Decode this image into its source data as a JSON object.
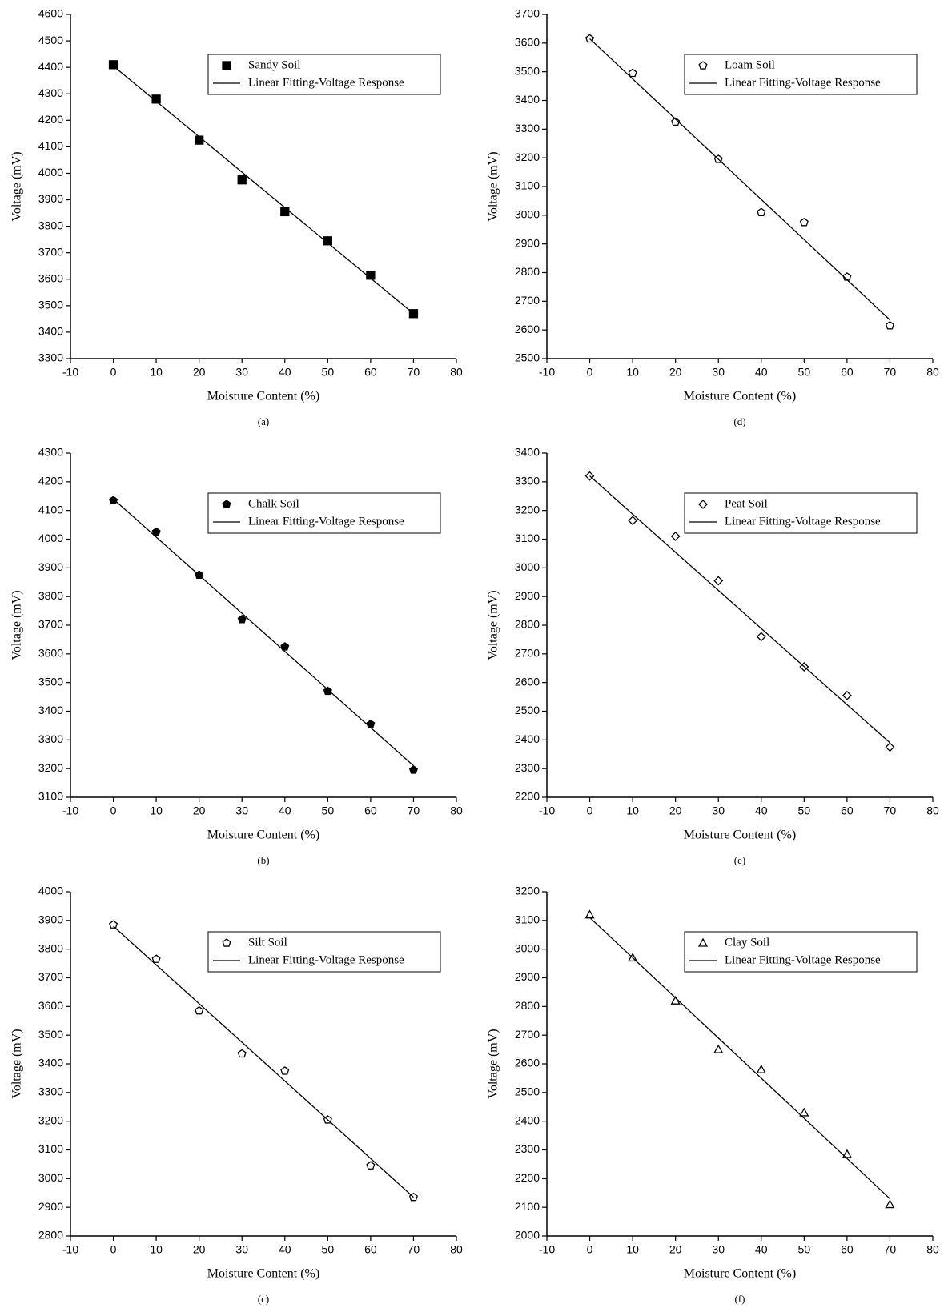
{
  "chart_data": [
    {
      "type": "scatter",
      "caption": "(a)",
      "xlabel": "Moisture Content (%)",
      "ylabel": "Voltage (mV)",
      "xlim": [
        -10,
        80
      ],
      "xticks": [
        -10,
        0,
        10,
        20,
        30,
        40,
        50,
        60,
        70,
        80
      ],
      "ylim": [
        3300,
        4600
      ],
      "yticks": [
        3300,
        3400,
        3500,
        3600,
        3700,
        3800,
        3900,
        4000,
        4100,
        4200,
        4300,
        4400,
        4500,
        4600
      ],
      "legend": "upper right",
      "series": [
        {
          "name": "Sandy Soil",
          "color": "#000000",
          "marker": "square",
          "marker_fill": "#000000",
          "x": [
            0,
            10,
            20,
            30,
            40,
            50,
            60,
            70
          ],
          "values": [
            4410,
            4280,
            4125,
            3975,
            3855,
            3745,
            3615,
            3470
          ]
        },
        {
          "name": "Linear Fitting-Voltage Response",
          "color": "#000000",
          "marker": "line",
          "x": [
            0,
            70
          ],
          "values": [
            4405,
            3470
          ]
        }
      ]
    },
    {
      "type": "scatter",
      "caption": "(b)",
      "xlabel": "Moisture Content (%)",
      "ylabel": "Voltage (mV)",
      "xlim": [
        -10,
        80
      ],
      "xticks": [
        -10,
        0,
        10,
        20,
        30,
        40,
        50,
        60,
        70,
        80
      ],
      "ylim": [
        3100,
        4300
      ],
      "yticks": [
        3100,
        3200,
        3300,
        3400,
        3500,
        3600,
        3700,
        3800,
        3900,
        4000,
        4100,
        4200,
        4300
      ],
      "legend": "upper right",
      "series": [
        {
          "name": "Chalk Soil",
          "color": "#000000",
          "marker": "pentagon",
          "marker_fill": "#000000",
          "x": [
            0,
            10,
            20,
            30,
            40,
            50,
            60,
            70
          ],
          "values": [
            4135,
            4025,
            3875,
            3720,
            3625,
            3470,
            3355,
            3195
          ]
        },
        {
          "name": "Linear Fitting-Voltage Response",
          "color": "#000000",
          "marker": "line",
          "x": [
            0,
            70
          ],
          "values": [
            4140,
            3210
          ]
        }
      ]
    },
    {
      "type": "scatter",
      "caption": "(c)",
      "xlabel": "Moisture Content (%)",
      "ylabel": "Voltage (mV)",
      "xlim": [
        -10,
        80
      ],
      "xticks": [
        -10,
        0,
        10,
        20,
        30,
        40,
        50,
        60,
        70,
        80
      ],
      "ylim": [
        2800,
        4000
      ],
      "yticks": [
        2800,
        2900,
        3000,
        3100,
        3200,
        3300,
        3400,
        3500,
        3600,
        3700,
        3800,
        3900,
        4000
      ],
      "legend": "upper right",
      "series": [
        {
          "name": "Silt Soil",
          "color": "#000000",
          "marker": "pentagon",
          "marker_fill": "#ffffff",
          "x": [
            0,
            10,
            20,
            30,
            40,
            50,
            60,
            70
          ],
          "values": [
            3885,
            3765,
            3585,
            3435,
            3375,
            3205,
            3045,
            2935
          ]
        },
        {
          "name": "Linear Fitting-Voltage Response",
          "color": "#000000",
          "marker": "line",
          "x": [
            0,
            70
          ],
          "values": [
            3880,
            2935
          ]
        }
      ]
    },
    {
      "type": "scatter",
      "caption": "(d)",
      "xlabel": "Moisture Content (%)",
      "ylabel": "Voltage (mV)",
      "xlim": [
        -10,
        80
      ],
      "xticks": [
        -10,
        0,
        10,
        20,
        30,
        40,
        50,
        60,
        70,
        80
      ],
      "ylim": [
        2500,
        3700
      ],
      "yticks": [
        2500,
        2600,
        2700,
        2800,
        2900,
        3000,
        3100,
        3200,
        3300,
        3400,
        3500,
        3600,
        3700
      ],
      "legend": "upper right",
      "series": [
        {
          "name": "Loam Soil",
          "color": "#000000",
          "marker": "pentagon",
          "marker_fill": "#ffffff",
          "x": [
            0,
            10,
            20,
            30,
            40,
            50,
            60,
            70
          ],
          "values": [
            3615,
            3495,
            3325,
            3195,
            3010,
            2975,
            2785,
            2615
          ]
        },
        {
          "name": "Linear Fitting-Voltage Response",
          "color": "#000000",
          "marker": "line",
          "x": [
            0,
            70
          ],
          "values": [
            3615,
            2635
          ]
        }
      ]
    },
    {
      "type": "scatter",
      "caption": "(e)",
      "xlabel": "Moisture Content (%)",
      "ylabel": "Voltage (mV)",
      "xlim": [
        -10,
        80
      ],
      "xticks": [
        -10,
        0,
        10,
        20,
        30,
        40,
        50,
        60,
        70,
        80
      ],
      "ylim": [
        2200,
        3400
      ],
      "yticks": [
        2200,
        2300,
        2400,
        2500,
        2600,
        2700,
        2800,
        2900,
        3000,
        3100,
        3200,
        3300,
        3400
      ],
      "legend": "upper right",
      "series": [
        {
          "name": "Peat Soil",
          "color": "#000000",
          "marker": "diamond",
          "marker_fill": "#ffffff",
          "x": [
            0,
            10,
            20,
            30,
            40,
            50,
            60,
            70
          ],
          "values": [
            3320,
            3165,
            3110,
            2955,
            2760,
            2655,
            2555,
            2375
          ]
        },
        {
          "name": "Linear Fitting-Voltage Response",
          "color": "#000000",
          "marker": "line",
          "x": [
            0,
            70
          ],
          "values": [
            3320,
            2390
          ]
        }
      ]
    },
    {
      "type": "scatter",
      "caption": "(f)",
      "xlabel": "Moisture Content (%)",
      "ylabel": "Voltage (mV)",
      "xlim": [
        -10,
        80
      ],
      "xticks": [
        -10,
        0,
        10,
        20,
        30,
        40,
        50,
        60,
        70,
        80
      ],
      "ylim": [
        2000,
        3200
      ],
      "yticks": [
        2000,
        2100,
        2200,
        2300,
        2400,
        2500,
        2600,
        2700,
        2800,
        2900,
        3000,
        3100,
        3200
      ],
      "legend": "upper right",
      "series": [
        {
          "name": "Clay Soil",
          "color": "#000000",
          "marker": "triangle",
          "marker_fill": "#ffffff",
          "x": [
            0,
            10,
            20,
            30,
            40,
            50,
            60,
            70
          ],
          "values": [
            3120,
            2970,
            2820,
            2650,
            2580,
            2430,
            2285,
            2110
          ]
        },
        {
          "name": "Linear Fitting-Voltage Response",
          "color": "#000000",
          "marker": "line",
          "x": [
            0,
            70
          ],
          "values": [
            3110,
            2130
          ]
        }
      ]
    }
  ]
}
